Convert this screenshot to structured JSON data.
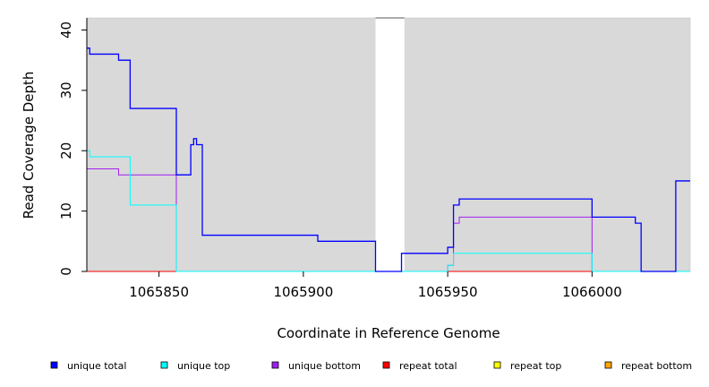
{
  "chart_data": {
    "type": "line",
    "title": "",
    "xlabel": "Coordinate in Reference Genome",
    "ylabel": "Read Coverage Depth",
    "xlim": [
      1065825,
      1066034
    ],
    "ylim": [
      0,
      42
    ],
    "x_ticks": [
      1065850,
      1065900,
      1065950,
      1066000
    ],
    "x_tick_labels": [
      "1065850",
      "1065900",
      "1065950",
      "1066000"
    ],
    "y_ticks": [
      0,
      10,
      20,
      30,
      40
    ],
    "y_tick_labels": [
      "0",
      "10",
      "20",
      "30",
      "40"
    ],
    "gap_region": [
      1065925,
      1065935
    ],
    "grid": false,
    "legend_position": "bottom",
    "series": [
      {
        "name": "unique total",
        "color": "#0000ff",
        "points": [
          [
            1065825,
            37
          ],
          [
            1065826,
            37
          ],
          [
            1065826,
            36
          ],
          [
            1065836,
            36
          ],
          [
            1065836,
            35
          ],
          [
            1065840,
            35
          ],
          [
            1065840,
            27
          ],
          [
            1065856,
            27
          ],
          [
            1065856,
            16
          ],
          [
            1065861,
            16
          ],
          [
            1065861,
            21
          ],
          [
            1065862,
            21
          ],
          [
            1065862,
            22
          ],
          [
            1065863,
            22
          ],
          [
            1065863,
            21
          ],
          [
            1065865,
            21
          ],
          [
            1065865,
            6
          ],
          [
            1065905,
            6
          ],
          [
            1065905,
            5
          ],
          [
            1065925,
            5
          ],
          [
            1065925,
            0
          ],
          [
            1065934,
            0
          ],
          [
            1065934,
            3
          ],
          [
            1065950,
            3
          ],
          [
            1065950,
            4
          ],
          [
            1065952,
            4
          ],
          [
            1065952,
            11
          ],
          [
            1065954,
            11
          ],
          [
            1065954,
            12
          ],
          [
            1066000,
            12
          ],
          [
            1066000,
            9
          ],
          [
            1066015,
            9
          ],
          [
            1066015,
            8
          ],
          [
            1066017,
            8
          ],
          [
            1066017,
            0
          ],
          [
            1066029,
            0
          ],
          [
            1066029,
            15
          ],
          [
            1066034,
            15
          ]
        ]
      },
      {
        "name": "unique top",
        "color": "#00ffff",
        "points": [
          [
            1065825,
            20
          ],
          [
            1065826,
            20
          ],
          [
            1065826,
            19
          ],
          [
            1065840,
            19
          ],
          [
            1065840,
            11
          ],
          [
            1065856,
            11
          ],
          [
            1065856,
            0
          ],
          [
            1065925,
            0
          ],
          [
            1065935,
            0
          ],
          [
            1065950,
            0
          ],
          [
            1065950,
            1
          ],
          [
            1065952,
            1
          ],
          [
            1065952,
            3
          ],
          [
            1066000,
            3
          ],
          [
            1066000,
            0
          ],
          [
            1066034,
            0
          ]
        ]
      },
      {
        "name": "unique bottom",
        "color": "#a020f0",
        "points": [
          [
            1065825,
            17
          ],
          [
            1065836,
            17
          ],
          [
            1065836,
            16
          ],
          [
            1065856,
            16
          ],
          [
            1065856,
            0
          ],
          [
            1065925,
            0
          ],
          [
            1065935,
            0
          ],
          [
            1065950,
            0
          ],
          [
            1065950,
            1
          ],
          [
            1065952,
            1
          ],
          [
            1065952,
            8
          ],
          [
            1065954,
            8
          ],
          [
            1065954,
            9
          ],
          [
            1066000,
            9
          ],
          [
            1066000,
            0
          ],
          [
            1066034,
            0
          ]
        ]
      },
      {
        "name": "repeat total",
        "color": "#ff0000",
        "points": [
          [
            1065825,
            0
          ],
          [
            1066034,
            0
          ]
        ]
      },
      {
        "name": "repeat top",
        "color": "#ffff00",
        "points": [
          [
            1065825,
            0
          ],
          [
            1066034,
            0
          ]
        ]
      },
      {
        "name": "repeat bottom",
        "color": "#ffa500",
        "points": [
          [
            1065825,
            0
          ],
          [
            1066034,
            0
          ]
        ]
      }
    ]
  },
  "legend": [
    {
      "label": "unique total",
      "color": "#0000ff"
    },
    {
      "label": "unique top",
      "color": "#00ffff"
    },
    {
      "label": "unique bottom",
      "color": "#a020f0"
    },
    {
      "label": "repeat total",
      "color": "#ff0000"
    },
    {
      "label": "repeat top",
      "color": "#ffff00"
    },
    {
      "label": "repeat bottom",
      "color": "#ffa500"
    }
  ],
  "style": {
    "panel_bg": "#d9d9d9",
    "gap_bg": "#ffffff"
  }
}
